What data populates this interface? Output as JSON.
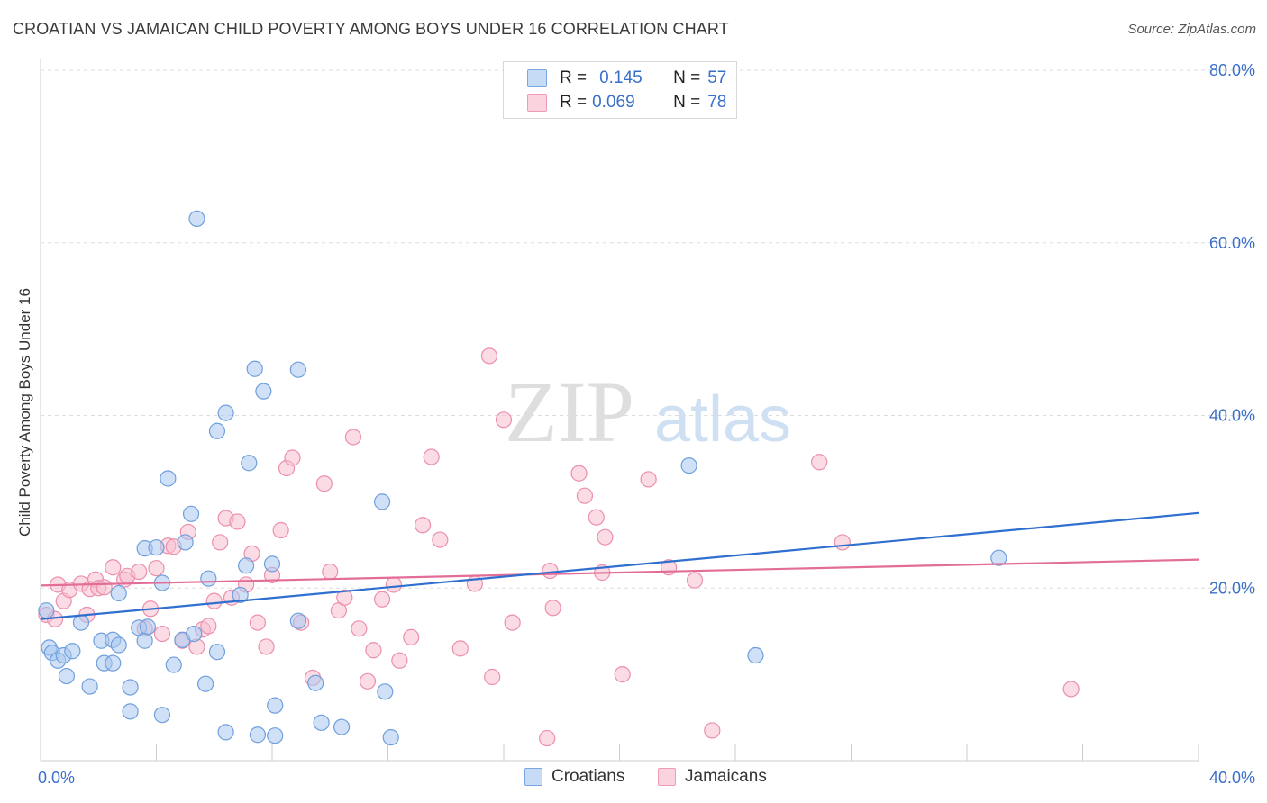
{
  "title": "CROATIAN VS JAMAICAN CHILD POVERTY AMONG BOYS UNDER 16 CORRELATION CHART",
  "source": "Source: ZipAtlas.com",
  "watermark": {
    "zip": "ZIP",
    "atlas": "atlas"
  },
  "legend_stats": [
    {
      "r_label": "R =",
      "r_value": "0.145",
      "n_label": "N =",
      "n_value": "57"
    },
    {
      "r_label": "R =",
      "r_value": "0.069",
      "n_label": "N =",
      "n_value": "78"
    }
  ],
  "colors": {
    "croatians_fill": "#a9c8f0",
    "croatians_stroke": "#6f9fdc",
    "croatians_line": "#2f6fcf",
    "jamaicans_fill": "#f7c0d0",
    "jamaicans_stroke": "#ec8fac",
    "jamaicans_line": "#e26d97",
    "tick_label": "#3a6fc9",
    "grid": "#dddddd"
  },
  "chart_data": {
    "type": "scatter",
    "title": "CROATIAN VS JAMAICAN CHILD POVERTY AMONG BOYS UNDER 16 CORRELATION CHART",
    "xlabel": "",
    "ylabel": "Child Poverty Among Boys Under 16",
    "xlim": [
      0,
      40
    ],
    "ylim": [
      0,
      80
    ],
    "x_tick_labels": [
      "0.0%",
      "40.0%"
    ],
    "y_ticks": [
      20,
      40,
      60,
      80
    ],
    "y_tick_labels": [
      "20.0%",
      "40.0%",
      "60.0%",
      "80.0%"
    ],
    "grid": true,
    "legend_position": "bottom",
    "series": [
      {
        "name": "Croatians",
        "trend": [
          [
            0,
            16.4
          ],
          [
            40,
            28.7
          ]
        ],
        "points": [
          [
            0.2,
            17.4
          ],
          [
            0.3,
            13.1
          ],
          [
            0.4,
            12.5
          ],
          [
            0.6,
            11.6
          ],
          [
            0.8,
            12.2
          ],
          [
            0.9,
            9.8
          ],
          [
            1.1,
            12.7
          ],
          [
            1.4,
            16.0
          ],
          [
            1.7,
            8.6
          ],
          [
            2.1,
            13.9
          ],
          [
            2.2,
            11.3
          ],
          [
            2.5,
            14.0
          ],
          [
            2.5,
            11.3
          ],
          [
            2.7,
            13.4
          ],
          [
            2.7,
            19.4
          ],
          [
            3.1,
            8.5
          ],
          [
            3.1,
            5.7
          ],
          [
            3.6,
            24.6
          ],
          [
            3.4,
            15.4
          ],
          [
            3.6,
            13.9
          ],
          [
            3.7,
            15.5
          ],
          [
            4.0,
            24.7
          ],
          [
            4.2,
            20.6
          ],
          [
            4.2,
            5.3
          ],
          [
            4.4,
            32.7
          ],
          [
            4.6,
            11.1
          ],
          [
            4.9,
            14.0
          ],
          [
            5.0,
            25.3
          ],
          [
            5.2,
            28.6
          ],
          [
            5.3,
            14.7
          ],
          [
            5.4,
            62.8
          ],
          [
            5.7,
            8.9
          ],
          [
            5.8,
            21.1
          ],
          [
            6.1,
            38.2
          ],
          [
            6.1,
            12.6
          ],
          [
            6.4,
            40.3
          ],
          [
            6.4,
            3.3
          ],
          [
            6.9,
            19.2
          ],
          [
            7.1,
            22.6
          ],
          [
            7.2,
            34.5
          ],
          [
            7.4,
            45.4
          ],
          [
            7.5,
            3.0
          ],
          [
            7.7,
            42.8
          ],
          [
            8.0,
            22.8
          ],
          [
            8.1,
            6.4
          ],
          [
            8.1,
            2.9
          ],
          [
            8.9,
            16.2
          ],
          [
            8.9,
            45.3
          ],
          [
            9.5,
            9.0
          ],
          [
            9.7,
            4.4
          ],
          [
            10.4,
            3.9
          ],
          [
            11.8,
            30.0
          ],
          [
            11.9,
            8.0
          ],
          [
            12.1,
            2.7
          ],
          [
            22.4,
            34.2
          ],
          [
            24.7,
            12.2
          ],
          [
            33.1,
            23.5
          ]
        ]
      },
      {
        "name": "Jamaicans",
        "trend": [
          [
            0,
            20.3
          ],
          [
            40,
            23.3
          ]
        ],
        "points": [
          [
            0.2,
            16.9
          ],
          [
            0.5,
            16.4
          ],
          [
            0.6,
            20.4
          ],
          [
            0.8,
            18.5
          ],
          [
            1.0,
            19.8
          ],
          [
            1.4,
            20.5
          ],
          [
            1.6,
            16.9
          ],
          [
            1.7,
            19.9
          ],
          [
            1.9,
            21.0
          ],
          [
            2.0,
            20.0
          ],
          [
            2.2,
            20.1
          ],
          [
            2.5,
            22.4
          ],
          [
            2.9,
            21.0
          ],
          [
            3.0,
            21.4
          ],
          [
            3.4,
            21.9
          ],
          [
            3.6,
            15.3
          ],
          [
            3.8,
            17.6
          ],
          [
            4.0,
            22.3
          ],
          [
            4.2,
            14.7
          ],
          [
            4.4,
            24.9
          ],
          [
            4.6,
            24.8
          ],
          [
            4.9,
            13.9
          ],
          [
            5.1,
            26.5
          ],
          [
            5.4,
            13.2
          ],
          [
            5.6,
            15.2
          ],
          [
            5.8,
            15.6
          ],
          [
            6.0,
            18.5
          ],
          [
            6.2,
            25.3
          ],
          [
            6.4,
            28.1
          ],
          [
            6.6,
            18.9
          ],
          [
            6.8,
            27.7
          ],
          [
            7.1,
            20.4
          ],
          [
            7.3,
            24.0
          ],
          [
            7.5,
            16.0
          ],
          [
            7.8,
            13.2
          ],
          [
            8.0,
            21.5
          ],
          [
            8.3,
            26.7
          ],
          [
            8.5,
            33.9
          ],
          [
            8.7,
            35.1
          ],
          [
            9.0,
            16.0
          ],
          [
            9.4,
            9.6
          ],
          [
            9.8,
            32.1
          ],
          [
            10.0,
            21.9
          ],
          [
            10.3,
            17.4
          ],
          [
            10.5,
            18.9
          ],
          [
            10.8,
            37.5
          ],
          [
            11.0,
            15.3
          ],
          [
            11.3,
            9.2
          ],
          [
            11.5,
            12.8
          ],
          [
            11.8,
            18.7
          ],
          [
            12.2,
            20.4
          ],
          [
            12.4,
            11.6
          ],
          [
            12.8,
            14.3
          ],
          [
            13.2,
            27.3
          ],
          [
            13.5,
            35.2
          ],
          [
            13.8,
            25.6
          ],
          [
            14.5,
            13.0
          ],
          [
            15.0,
            20.5
          ],
          [
            15.5,
            46.9
          ],
          [
            15.6,
            9.7
          ],
          [
            16.0,
            39.5
          ],
          [
            16.3,
            16.0
          ],
          [
            17.5,
            2.6
          ],
          [
            17.6,
            22.0
          ],
          [
            17.7,
            17.7
          ],
          [
            18.6,
            33.3
          ],
          [
            18.8,
            30.7
          ],
          [
            19.2,
            28.2
          ],
          [
            19.4,
            21.8
          ],
          [
            19.5,
            25.9
          ],
          [
            20.1,
            10.0
          ],
          [
            21.0,
            32.6
          ],
          [
            21.7,
            22.4
          ],
          [
            22.6,
            20.9
          ],
          [
            23.2,
            3.5
          ],
          [
            26.9,
            34.6
          ],
          [
            27.7,
            25.3
          ],
          [
            35.6,
            8.3
          ]
        ]
      }
    ]
  }
}
